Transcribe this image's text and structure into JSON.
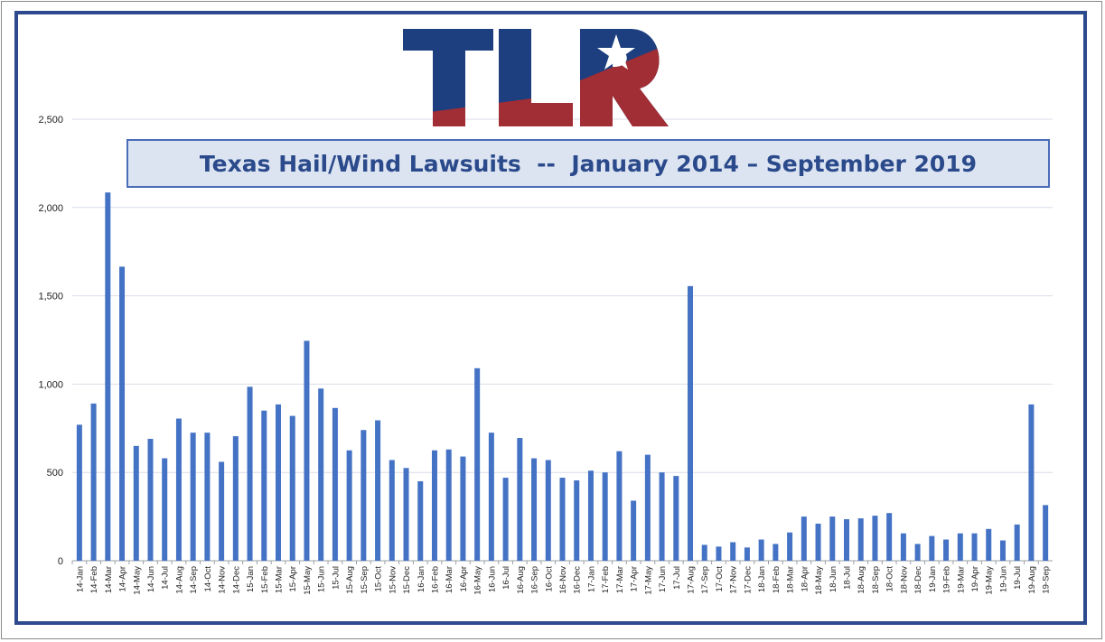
{
  "logo": {
    "text": "TLR"
  },
  "chart_data": {
    "type": "bar",
    "title": "Texas Hail/Wind Lawsuits  --  January 2014 – September 2019",
    "xlabel": "",
    "ylabel": "",
    "ylim": [
      0,
      2500
    ],
    "yticks": [
      0,
      500,
      1000,
      1500,
      2000,
      2500
    ],
    "ytick_labels": [
      "0",
      "500",
      "1,000",
      "1,500",
      "2,000",
      "2,500"
    ],
    "grid": true,
    "bar_color": "#4472c4",
    "categories": [
      "14-Jan",
      "14-Feb",
      "14-Mar",
      "14-Apr",
      "14-May",
      "14-Jun",
      "14-Jul",
      "14-Aug",
      "14-Sep",
      "14-Oct",
      "14-Nov",
      "14-Dec",
      "15-Jan",
      "15-Feb",
      "15-Mar",
      "15-Apr",
      "15-May",
      "15-Jun",
      "15-Jul",
      "15-Aug",
      "15-Sep",
      "15-Oct",
      "15-Nov",
      "15-Dec",
      "16-Jan",
      "16-Feb",
      "16-Mar",
      "16-Apr",
      "16-May",
      "16-Jun",
      "16-Jul",
      "16-Aug",
      "16-Sep",
      "16-Oct",
      "16-Nov",
      "16-Dec",
      "17-Jan",
      "17-Feb",
      "17-Mar",
      "17-Apr",
      "17-May",
      "17-Jun",
      "17-Jul",
      "17-Aug",
      "17-Sep",
      "17-Oct",
      "17-Nov",
      "17-Dec",
      "18-Jan",
      "18-Feb",
      "18-Mar",
      "18-Apr",
      "18-May",
      "18-Jun",
      "18-Jul",
      "18-Aug",
      "18-Sep",
      "18-Oct",
      "18-Nov",
      "18-Dec",
      "19-Jan",
      "19-Feb",
      "19-Mar",
      "19-Apr",
      "19-May",
      "19-Jun",
      "19-Jul",
      "19-Aug",
      "19-Sep"
    ],
    "values": [
      770,
      890,
      2085,
      1665,
      650,
      690,
      580,
      805,
      725,
      725,
      560,
      705,
      985,
      850,
      885,
      820,
      1245,
      975,
      865,
      625,
      740,
      795,
      570,
      525,
      450,
      625,
      630,
      590,
      1090,
      725,
      470,
      695,
      580,
      570,
      470,
      455,
      510,
      500,
      620,
      340,
      600,
      500,
      480,
      1555,
      90,
      80,
      105,
      75,
      120,
      95,
      160,
      250,
      210,
      250,
      235,
      240,
      255,
      270,
      155,
      95,
      140,
      120,
      155,
      155,
      180,
      115,
      205,
      885,
      315
    ]
  }
}
